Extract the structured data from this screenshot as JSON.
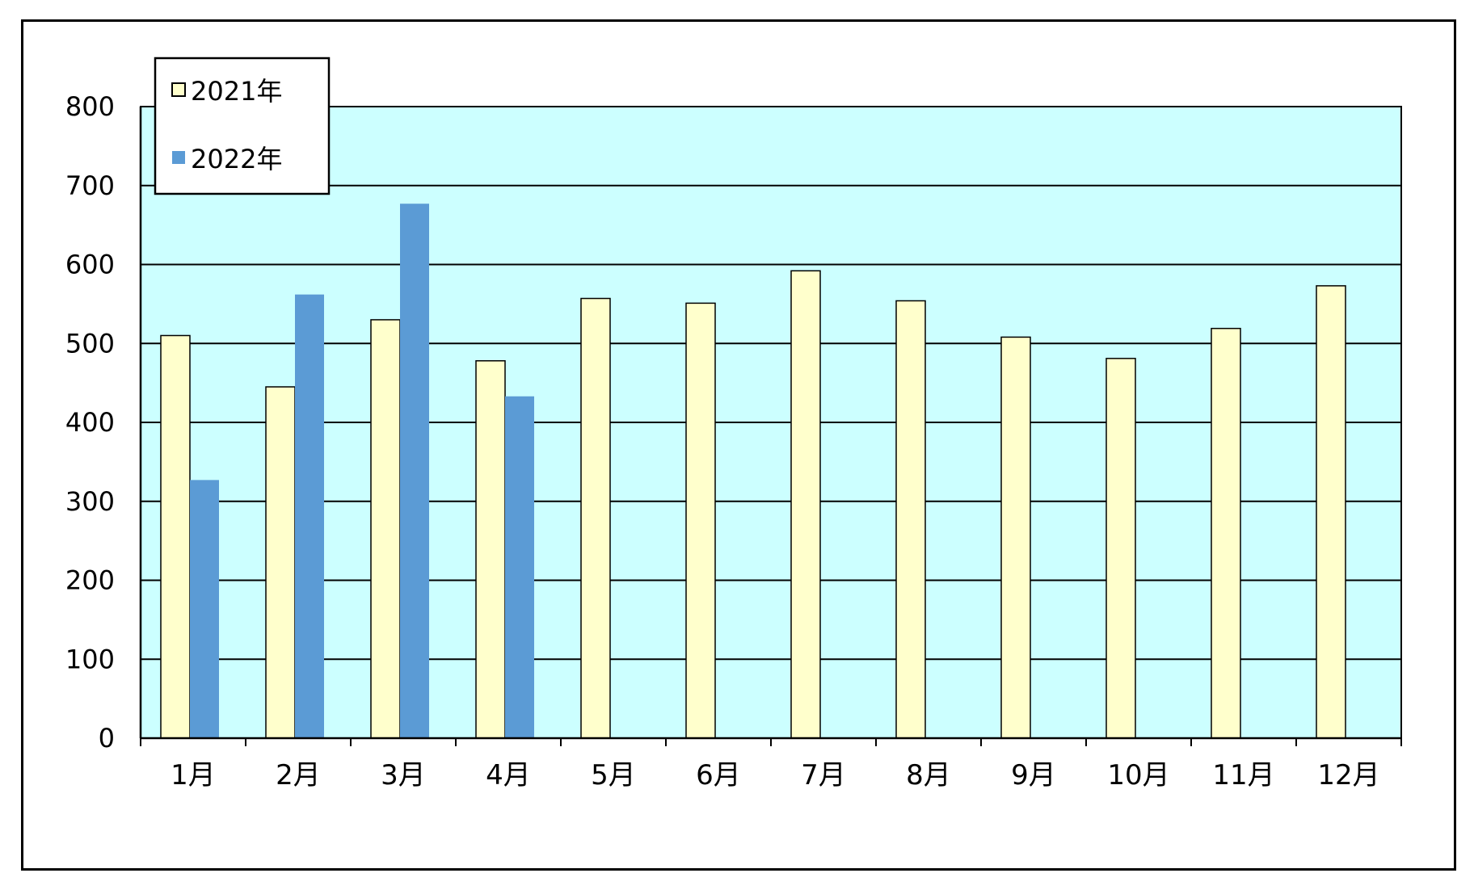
{
  "chart_data": {
    "type": "bar",
    "categories": [
      "1月",
      "2月",
      "3月",
      "4月",
      "5月",
      "6月",
      "7月",
      "8月",
      "9月",
      "10月",
      "11月",
      "12月"
    ],
    "series": [
      {
        "name": "2021年",
        "values": [
          510,
          445,
          530,
          478,
          557,
          551,
          592,
          554,
          508,
          481,
          519,
          573
        ],
        "color": "#ffffcc"
      },
      {
        "name": "2022年",
        "values": [
          327,
          562,
          677,
          433,
          null,
          null,
          null,
          null,
          null,
          null,
          null,
          null
        ],
        "color": "#5b9bd5"
      }
    ],
    "ylim": [
      0,
      800
    ],
    "yticks": [
      0,
      100,
      200,
      300,
      400,
      500,
      600,
      700,
      800
    ],
    "grid": true,
    "legend": "top-left",
    "plot_background": "#ccffff",
    "title": "",
    "xlabel": "",
    "ylabel": ""
  }
}
